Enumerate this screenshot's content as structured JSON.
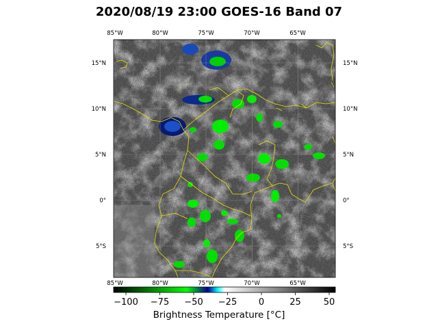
{
  "title": "2020/08/19 23:00 GOES-16 Band 07",
  "map": {
    "lon_labels": [
      "85°W",
      "80°W",
      "75°W",
      "70°W",
      "65°W"
    ],
    "lat_labels": [
      "15°N",
      "10°N",
      "5°N",
      "0°",
      "5°S"
    ],
    "coastline_color": "#e8e000",
    "gridline_color": "#9a9a9a"
  },
  "colorbar": {
    "label": "Brightness Temperature [°C]",
    "ticks": [
      "−100",
      "−75",
      "−50",
      "−25",
      "0",
      "25",
      "50"
    ],
    "colors": [
      "#000000",
      "#00ff00",
      "#00008b",
      "#00ffff",
      "#ffffff",
      "#000000"
    ]
  }
}
